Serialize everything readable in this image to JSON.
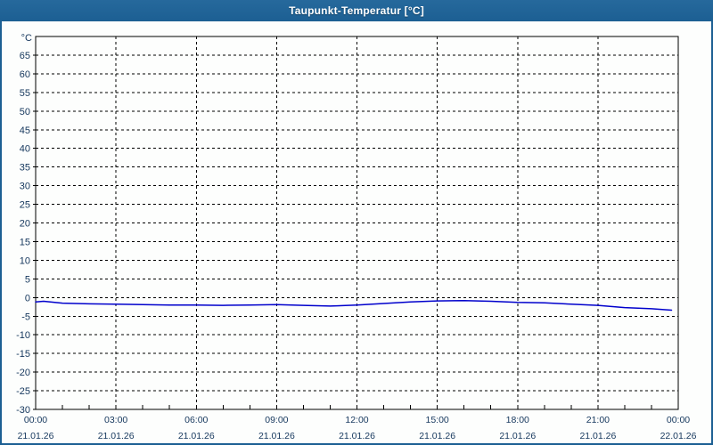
{
  "window": {
    "title": "Taupunkt-Temperatur [°C]",
    "titlebar_color": "#1c5f93",
    "border_color": "#1c5f93"
  },
  "chart_data": {
    "type": "line",
    "title": "Taupunkt-Temperatur [°C]",
    "y_axis_unit": "°C",
    "y_min": -30,
    "y_max": 70,
    "y_ticks": [
      65,
      60,
      55,
      50,
      45,
      40,
      35,
      30,
      25,
      20,
      15,
      10,
      5,
      0,
      -5,
      -10,
      -15,
      -20,
      -25,
      -30
    ],
    "x_hours": 24,
    "x_major_step_hours": 3,
    "x_minor_step_hours": 1,
    "x_tick_times": [
      "00:00",
      "03:00",
      "06:00",
      "09:00",
      "12:00",
      "15:00",
      "18:00",
      "21:00",
      "00:00"
    ],
    "x_tick_dates": [
      "21.01.26",
      "21.01.26",
      "21.01.26",
      "21.01.26",
      "21.01.26",
      "21.01.26",
      "21.01.26",
      "21.01.26",
      "22.01.26"
    ],
    "grid": "dashed",
    "legend": "none",
    "colors": {
      "line": "#0000cc",
      "axis": "#000000",
      "grid": "#000000",
      "labels": "#14365c",
      "plot_background": "#fdfefd"
    },
    "series": [
      {
        "name": "Taupunkt-Temperatur",
        "unit": "°C",
        "points": [
          [
            0,
            -1.2
          ],
          [
            0.3,
            -1.0
          ],
          [
            1,
            -1.5
          ],
          [
            2,
            -1.7
          ],
          [
            3,
            -1.8
          ],
          [
            4,
            -1.9
          ],
          [
            5,
            -2.0
          ],
          [
            6,
            -2.0
          ],
          [
            7,
            -2.1
          ],
          [
            8,
            -2.0
          ],
          [
            9,
            -1.9
          ],
          [
            10,
            -2.1
          ],
          [
            11,
            -2.3
          ],
          [
            12,
            -2.0
          ],
          [
            13,
            -1.6
          ],
          [
            14,
            -1.2
          ],
          [
            15,
            -0.9
          ],
          [
            16,
            -0.8
          ],
          [
            17,
            -1.0
          ],
          [
            18,
            -1.3
          ],
          [
            19,
            -1.4
          ],
          [
            20,
            -1.8
          ],
          [
            21,
            -2.1
          ],
          [
            22,
            -2.7
          ],
          [
            23,
            -3.0
          ],
          [
            23.75,
            -3.4
          ]
        ]
      }
    ]
  }
}
